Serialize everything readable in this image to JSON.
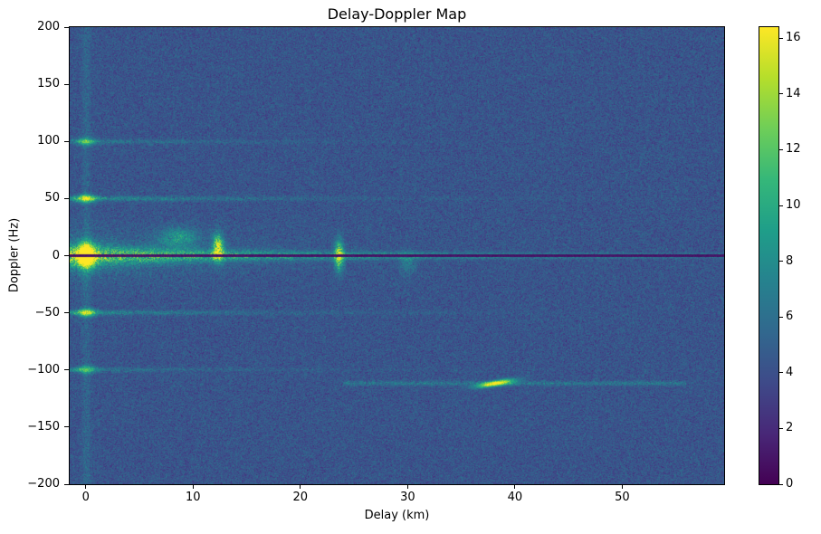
{
  "chart_data": {
    "type": "heatmap",
    "title": "Delay-Doppler Map",
    "xlabel": "Delay (km)",
    "ylabel": "Doppler (Hz)",
    "x_range": [
      -1.5,
      59.5
    ],
    "y_range": [
      -200,
      200
    ],
    "x_ticks": [
      0,
      10,
      20,
      30,
      40,
      50
    ],
    "y_ticks": [
      -200,
      -150,
      -100,
      -50,
      0,
      50,
      100,
      150,
      200
    ],
    "value_range": [
      0,
      16.4
    ],
    "colorbar_ticks": [
      0,
      2,
      4,
      6,
      8,
      10,
      12,
      14,
      16
    ],
    "colormap": "viridis",
    "colormap_stops": [
      "#440154",
      "#482878",
      "#3e4a89",
      "#31688e",
      "#26828e",
      "#1f9e89",
      "#35b779",
      "#6ece58",
      "#b5de2b",
      "#fde725"
    ],
    "grid": false,
    "legend": "colorbar-right",
    "noise": {
      "mean": 4.3,
      "std": 0.85,
      "seed": 42
    },
    "features": {
      "zero_doppler_ridge": {
        "doppler": 0,
        "amp_near": 7.0,
        "amp_far": 3.2,
        "sigma_near": 6.0,
        "sigma_far": 1.2,
        "delay_decay": 18
      },
      "clutter_spread": {
        "amp": 2.2,
        "sigma_doppler": 16,
        "delay_decay": 10
      },
      "zero_delay_column": {
        "delay": 0,
        "amp": 1.3,
        "sigma": 0.3
      },
      "zero_doppler_null": {
        "doppler": 0,
        "half_width_hz": 1.0,
        "value": 0.5
      },
      "direct_signal": {
        "delay": 0,
        "doppler": 0,
        "amp": 16,
        "sigma_delay": 0.55,
        "sigma_doppler": 7
      },
      "harmonic_lines": [
        {
          "doppler": 50,
          "amp": 3.4,
          "delay_decay": 15,
          "sigma": 1.5,
          "spot_amp": 9
        },
        {
          "doppler": -50,
          "amp": 3.2,
          "delay_decay": 15,
          "sigma": 1.5,
          "spot_amp": 8
        },
        {
          "doppler": 100,
          "amp": 2.4,
          "delay_decay": 13,
          "sigma": 1.3,
          "spot_amp": 5.5
        },
        {
          "doppler": -100,
          "amp": 2.2,
          "delay_decay": 13,
          "sigma": 1.3,
          "spot_amp": 5.5
        }
      ],
      "clutter_blobs": [
        {
          "delay": 12.3,
          "doppler": 7,
          "amp": 10.5,
          "sigma_delay": 0.35,
          "sigma_doppler": 8
        },
        {
          "delay": 23.6,
          "doppler": 0,
          "amp": 9.5,
          "sigma_delay": 0.3,
          "sigma_doppler": 9
        },
        {
          "delay": 8.6,
          "doppler": 16,
          "amp": 4.0,
          "sigma_delay": 1.3,
          "sigma_doppler": 6
        },
        {
          "delay": 30.0,
          "doppler": -7,
          "amp": 2.5,
          "sigma_delay": 0.5,
          "sigma_doppler": 7
        }
      ],
      "target_echo": {
        "delay": 38.2,
        "doppler": -112,
        "amp": 12.5,
        "sigma_delay": 1.2,
        "sigma_doppler": 1.7,
        "tilt": 1.5,
        "trail": {
          "doppler": -112,
          "amp": 2.0,
          "delay_start": 24,
          "delay_end": 56,
          "sigma": 1.4
        }
      }
    }
  }
}
